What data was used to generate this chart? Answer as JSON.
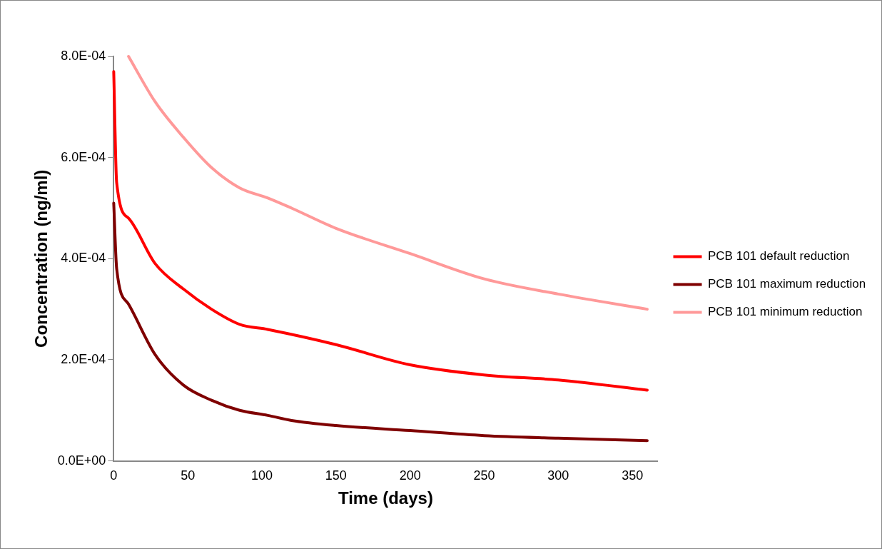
{
  "chart_data": {
    "type": "line",
    "xlabel": "Time (days)",
    "ylabel": "Concentration (ng/ml)",
    "xlim": [
      0,
      367
    ],
    "xticks": [
      0,
      50,
      100,
      150,
      200,
      250,
      300,
      350
    ],
    "ylim": [
      0,
      0.0008
    ],
    "yticks": [
      {
        "value": 0,
        "label": "0.0E+00"
      },
      {
        "value": 0.0002,
        "label": "2.0E-04"
      },
      {
        "value": 0.0004,
        "label": "4.0E-04"
      },
      {
        "value": 0.0006,
        "label": "6.0E-04"
      },
      {
        "value": 0.0008,
        "label": "8.0E-04"
      }
    ],
    "grid": false,
    "legend": "right",
    "marker": "none",
    "line_style": "solid",
    "series": [
      {
        "name": "PCB 101 default reduction",
        "color": "#ff0000",
        "x": [
          0,
          2,
          10,
          28,
          47,
          66,
          85,
          104,
          150,
          200,
          250,
          300,
          360
        ],
        "values": [
          0.00077,
          0.00055,
          0.00048,
          0.00039,
          0.00034,
          0.0003,
          0.00027,
          0.00026,
          0.00023,
          0.00019,
          0.00017,
          0.00016,
          0.00014
        ]
      },
      {
        "name": "PCB 101 maximum reduction",
        "color": "#7f0000",
        "x": [
          0,
          2,
          10,
          28,
          47,
          66,
          85,
          104,
          120,
          150,
          200,
          250,
          300,
          360
        ],
        "values": [
          0.00051,
          0.00038,
          0.00031,
          0.00021,
          0.00015,
          0.00012,
          0.0001,
          9e-05,
          8e-05,
          7e-05,
          6e-05,
          5e-05,
          4.5e-05,
          4e-05
        ]
      },
      {
        "name": "PCB 101 minimum reduction",
        "color": "#ff9999",
        "x": [
          10,
          28,
          47,
          66,
          85,
          104,
          120,
          150,
          200,
          250,
          300,
          360
        ],
        "values": [
          0.0008,
          0.00071,
          0.00064,
          0.00058,
          0.00054,
          0.00052,
          0.0005,
          0.00046,
          0.00041,
          0.00036,
          0.00033,
          0.0003
        ]
      }
    ]
  }
}
